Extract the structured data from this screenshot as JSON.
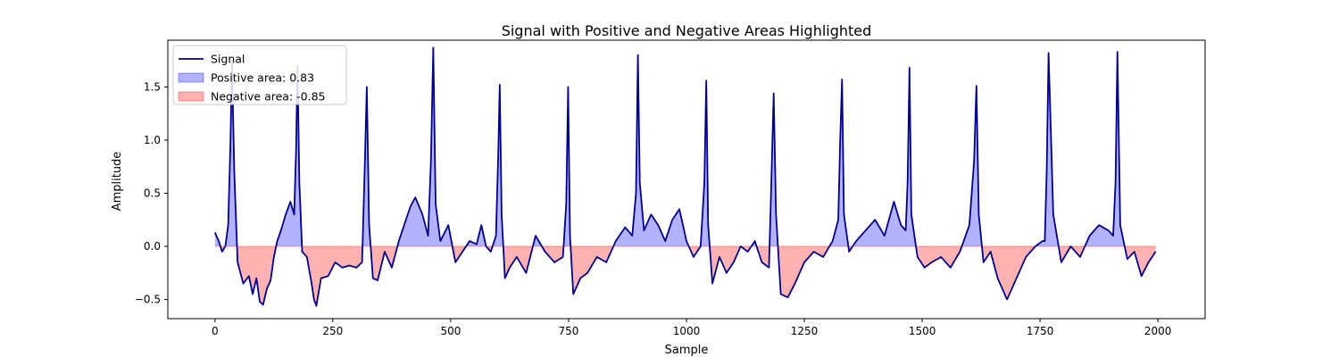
{
  "chart_data": {
    "type": "area",
    "title": "Signal with Positive and Negative Areas Highlighted",
    "xlabel": "Sample",
    "ylabel": "Amplitude",
    "xlim": [
      -100,
      2100
    ],
    "ylim": [
      -0.68,
      1.94
    ],
    "xticks": [
      0,
      250,
      500,
      750,
      1000,
      1250,
      1500,
      1750,
      2000
    ],
    "xtick_labels": [
      "0",
      "250",
      "500",
      "750",
      "1000",
      "1250",
      "1500",
      "1750",
      "2000"
    ],
    "yticks": [
      -0.5,
      0.0,
      0.5,
      1.0,
      1.5
    ],
    "ytick_labels": [
      "−0.5",
      "0.0",
      "0.5",
      "1.0",
      "1.5"
    ],
    "grid": false,
    "legend_position": "top-left",
    "colors": {
      "signal": "#00008b",
      "positive_fill": "#0000ff",
      "negative_fill": "#ff0000"
    },
    "legend": [
      {
        "label": "Signal",
        "kind": "line",
        "color": "#00008b"
      },
      {
        "label": "Positive area: 0.83",
        "kind": "patch",
        "color": "#0000ff"
      },
      {
        "label": "Negative area: -0.85",
        "kind": "patch",
        "color": "#ff0000"
      }
    ],
    "series": [
      {
        "name": "Signal",
        "x": [
          0,
          8,
          15,
          22,
          28,
          33,
          36,
          41,
          48,
          60,
          72,
          80,
          88,
          95,
          102,
          110,
          118,
          125,
          132,
          140,
          150,
          160,
          168,
          172,
          175,
          179,
          185,
          195,
          205,
          210,
          215,
          225,
          240,
          255,
          270,
          285,
          300,
          312,
          318,
          322,
          327,
          335,
          345,
          360,
          375,
          390,
          405,
          415,
          425,
          440,
          452,
          458,
          463,
          468,
          478,
          495,
          510,
          525,
          540,
          555,
          565,
          575,
          585,
          596,
          601,
          604,
          608,
          615,
          625,
          640,
          660,
          680,
          700,
          720,
          738,
          745,
          749,
          753,
          760,
          775,
          790,
          810,
          830,
          850,
          870,
          885,
          893,
          897,
          901,
          910,
          925,
          940,
          955,
          970,
          985,
          1000,
          1015,
          1030,
          1038,
          1042,
          1046,
          1055,
          1070,
          1085,
          1100,
          1115,
          1130,
          1145,
          1160,
          1175,
          1180,
          1185,
          1190,
          1200,
          1215,
          1230,
          1250,
          1270,
          1290,
          1310,
          1322,
          1326,
          1330,
          1334,
          1345,
          1360,
          1380,
          1400,
          1420,
          1440,
          1455,
          1465,
          1469,
          1473,
          1477,
          1490,
          1505,
          1520,
          1540,
          1560,
          1580,
          1600,
          1610,
          1615,
          1620,
          1630,
          1645,
          1660,
          1680,
          1700,
          1720,
          1740,
          1755,
          1760,
          1764,
          1768,
          1778,
          1795,
          1815,
          1835,
          1855,
          1875,
          1895,
          1905,
          1910,
          1914,
          1920,
          1935,
          1950,
          1965,
          1980,
          1995
        ],
        "values": [
          0.13,
          0.05,
          -0.05,
          0.0,
          0.2,
          1.0,
          1.75,
          0.7,
          -0.15,
          -0.35,
          -0.28,
          -0.45,
          -0.3,
          -0.52,
          -0.55,
          -0.4,
          -0.32,
          -0.1,
          0.05,
          0.15,
          0.3,
          0.42,
          0.3,
          0.9,
          1.7,
          0.6,
          -0.05,
          -0.1,
          -0.35,
          -0.5,
          -0.56,
          -0.3,
          -0.28,
          -0.15,
          -0.2,
          -0.18,
          -0.2,
          -0.15,
          0.8,
          1.5,
          0.2,
          -0.3,
          -0.32,
          -0.05,
          -0.2,
          0.05,
          0.25,
          0.38,
          0.46,
          0.3,
          0.1,
          0.8,
          1.87,
          0.4,
          0.05,
          0.2,
          -0.15,
          -0.05,
          0.05,
          0.02,
          0.2,
          0.0,
          -0.05,
          0.1,
          0.9,
          1.52,
          0.3,
          -0.3,
          -0.2,
          -0.1,
          -0.25,
          0.1,
          -0.05,
          -0.15,
          -0.1,
          0.4,
          1.5,
          0.1,
          -0.45,
          -0.3,
          -0.25,
          -0.1,
          -0.15,
          0.05,
          0.18,
          0.1,
          0.5,
          1.8,
          0.6,
          0.15,
          0.3,
          0.2,
          0.05,
          0.25,
          0.35,
          0.05,
          -0.1,
          0.0,
          0.6,
          1.56,
          0.2,
          -0.35,
          -0.1,
          -0.25,
          -0.15,
          0.0,
          -0.05,
          0.05,
          -0.15,
          -0.2,
          0.6,
          1.44,
          0.3,
          -0.45,
          -0.48,
          -0.35,
          -0.15,
          -0.05,
          -0.1,
          0.05,
          0.25,
          1.0,
          1.57,
          0.3,
          -0.05,
          0.05,
          0.15,
          0.25,
          0.1,
          0.42,
          0.2,
          0.15,
          0.6,
          1.68,
          0.3,
          -0.1,
          -0.2,
          -0.15,
          -0.1,
          -0.2,
          -0.05,
          0.2,
          0.8,
          1.51,
          0.3,
          -0.15,
          -0.05,
          -0.3,
          -0.5,
          -0.3,
          -0.1,
          0.0,
          0.05,
          0.05,
          0.7,
          1.82,
          0.3,
          -0.15,
          0.0,
          -0.1,
          0.1,
          0.2,
          0.15,
          0.1,
          0.6,
          1.83,
          0.2,
          -0.12,
          -0.05,
          -0.28,
          -0.15,
          -0.05
        ]
      }
    ]
  }
}
